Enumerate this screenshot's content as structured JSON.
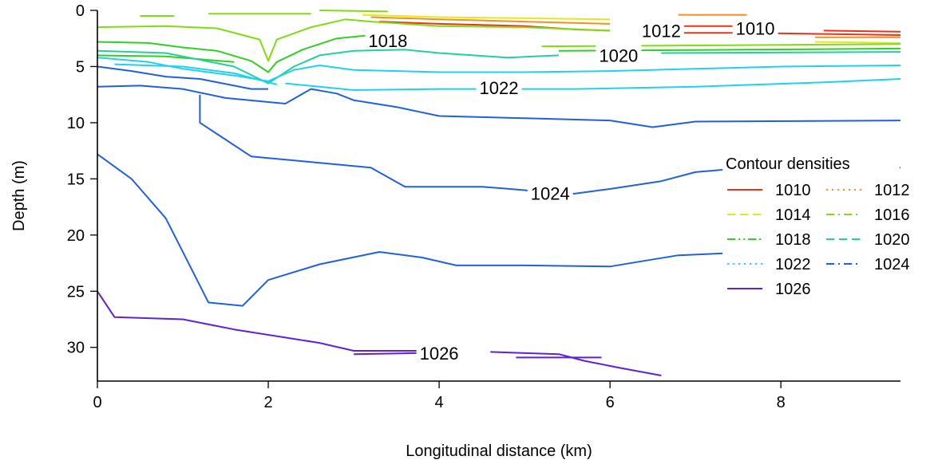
{
  "chart_data": {
    "type": "line",
    "subtype": "contour",
    "xlabel": "Longitudinal distance (km)",
    "ylabel": "Depth (m)",
    "xlim": [
      0,
      9.4
    ],
    "ylim": [
      0,
      33
    ],
    "y_inverted": true,
    "x_ticks": [
      0,
      2,
      4,
      6,
      8
    ],
    "y_ticks": [
      0,
      5,
      10,
      15,
      20,
      25,
      30
    ],
    "legend": {
      "title": "Contour densities",
      "placement": "right"
    },
    "series": [
      {
        "name": "1010",
        "color": "#e8331c",
        "dash": "solid",
        "points": [
          [
            3.3,
            1.0
          ],
          [
            4.0,
            1.2
          ],
          [
            5.0,
            1.4
          ],
          [
            5.6,
            1.7
          ],
          [
            6.0,
            1.8
          ]
        ],
        "segments": [
          [
            [
              6.8,
              2.0
            ],
            [
              7.6,
              2.0
            ],
            [
              9.4,
              2.2
            ]
          ],
          [
            [
              6.8,
              1.4
            ],
            [
              7.5,
              1.4
            ]
          ],
          [
            [
              8.5,
              1.8
            ],
            [
              9.4,
              1.9
            ]
          ]
        ],
        "labels": [
          {
            "x": 7.7,
            "y": 1.6,
            "text": "1010"
          }
        ]
      },
      {
        "name": "1012",
        "color": "#f09020",
        "dash": "dot",
        "points": [
          [
            3.2,
            0.6
          ],
          [
            4.0,
            0.8
          ],
          [
            5.0,
            1.0
          ],
          [
            6.0,
            1.2
          ]
        ],
        "segments": [
          [
            [
              6.8,
              0.4
            ],
            [
              7.6,
              0.4
            ]
          ],
          [
            [
              8.4,
              2.4
            ],
            [
              9.4,
              2.4
            ]
          ]
        ],
        "labels": [
          {
            "x": 6.6,
            "y": 1.8,
            "text": "1012"
          }
        ]
      },
      {
        "name": "1014",
        "color": "#e6e620",
        "dash": "dash",
        "points": [
          [
            3.1,
            0.4
          ],
          [
            4.0,
            0.6
          ],
          [
            5.0,
            0.7
          ],
          [
            6.0,
            0.8
          ]
        ],
        "segments": [
          [
            [
              8.4,
              2.8
            ],
            [
              9.4,
              2.9
            ]
          ]
        ],
        "labels": []
      },
      {
        "name": "1016",
        "color": "#80dc10",
        "dash": "dashdot",
        "points": [
          [
            0.0,
            1.5
          ],
          [
            0.8,
            1.4
          ],
          [
            1.4,
            1.6
          ],
          [
            1.9,
            2.6
          ],
          [
            2.0,
            4.5
          ],
          [
            2.1,
            2.6
          ],
          [
            2.5,
            1.5
          ],
          [
            2.9,
            0.8
          ],
          [
            3.2,
            1.0
          ],
          [
            4.0,
            1.4
          ],
          [
            5.0,
            1.5
          ],
          [
            6.0,
            1.8
          ]
        ],
        "segments": [
          [
            [
              5.2,
              3.2
            ],
            [
              7.4,
              3.1
            ],
            [
              9.4,
              3.0
            ]
          ],
          [
            [
              1.3,
              0.3
            ],
            [
              2.5,
              0.3
            ]
          ],
          [
            [
              0.5,
              0.5
            ],
            [
              0.9,
              0.5
            ]
          ],
          [
            [
              2.6,
              0.0
            ],
            [
              3.4,
              0.1
            ]
          ]
        ],
        "labels": []
      },
      {
        "name": "1018",
        "color": "#30d020",
        "dash": "dashdotdot",
        "points": [
          [
            0.0,
            2.8
          ],
          [
            0.6,
            2.9
          ],
          [
            1.0,
            3.3
          ],
          [
            1.4,
            3.6
          ],
          [
            1.8,
            4.5
          ],
          [
            2.0,
            5.5
          ],
          [
            2.1,
            4.6
          ],
          [
            2.4,
            3.5
          ],
          [
            2.8,
            2.5
          ],
          [
            3.2,
            2.2
          ],
          [
            3.6,
            2.4
          ]
        ],
        "segments": [
          [
            [
              5.4,
              3.6
            ],
            [
              7.6,
              3.5
            ],
            [
              9.4,
              3.4
            ]
          ],
          [
            [
              0.0,
              4.0
            ],
            [
              0.8,
              4.1
            ],
            [
              1.6,
              4.6
            ]
          ]
        ],
        "labels": [
          {
            "x": 3.4,
            "y": 2.7,
            "text": "1018"
          }
        ]
      },
      {
        "name": "1020",
        "color": "#20d0a0",
        "dash": "dash",
        "points": [
          [
            0.0,
            3.6
          ],
          [
            0.8,
            3.8
          ],
          [
            1.6,
            5.0
          ],
          [
            2.0,
            6.5
          ],
          [
            2.3,
            5.0
          ],
          [
            2.6,
            4.0
          ],
          [
            3.0,
            3.6
          ],
          [
            3.6,
            3.5
          ],
          [
            4.0,
            3.8
          ],
          [
            4.8,
            4.2
          ],
          [
            5.4,
            4.0
          ]
        ],
        "segments": [
          [
            [
              6.6,
              3.8
            ],
            [
              9.4,
              3.7
            ]
          ]
        ],
        "labels": [
          {
            "x": 6.1,
            "y": 4.0,
            "text": "1020"
          }
        ]
      },
      {
        "name": "1022",
        "color": "#20d0f0",
        "dash": "dot",
        "points": [
          [
            0.0,
            4.2
          ],
          [
            0.6,
            4.6
          ],
          [
            1.0,
            5.2
          ],
          [
            1.6,
            5.8
          ],
          [
            2.0,
            6.3
          ],
          [
            2.3,
            5.3
          ],
          [
            2.6,
            4.9
          ],
          [
            3.0,
            5.3
          ],
          [
            4.0,
            5.5
          ],
          [
            5.0,
            5.5
          ],
          [
            6.0,
            5.4
          ],
          [
            7.0,
            5.2
          ],
          [
            8.0,
            5.0
          ],
          [
            9.4,
            4.9
          ]
        ],
        "segments": [
          [
            [
              2.2,
              6.5
            ],
            [
              3.0,
              7.1
            ],
            [
              4.0,
              7.0
            ],
            [
              5.6,
              7.0
            ],
            [
              7.0,
              6.8
            ],
            [
              8.5,
              6.4
            ],
            [
              9.4,
              6.1
            ]
          ],
          [
            [
              0.2,
              4.8
            ],
            [
              1.0,
              5.0
            ],
            [
              1.6,
              5.6
            ],
            [
              2.1,
              6.6
            ]
          ]
        ],
        "labels": [
          {
            "x": 4.7,
            "y": 6.9,
            "text": "1022"
          }
        ]
      },
      {
        "name": "1024",
        "color": "#2060e0",
        "dash": "dashdot",
        "points": [
          [
            0.0,
            6.8
          ],
          [
            0.5,
            6.7
          ],
          [
            1.0,
            7.0
          ],
          [
            1.5,
            7.8
          ],
          [
            2.2,
            8.3
          ],
          [
            2.5,
            7.0
          ],
          [
            2.8,
            7.4
          ],
          [
            3.0,
            8.0
          ],
          [
            3.5,
            8.6
          ],
          [
            4.0,
            9.4
          ],
          [
            5.0,
            9.6
          ],
          [
            6.0,
            9.8
          ],
          [
            6.5,
            10.4
          ],
          [
            7.0,
            9.9
          ],
          [
            9.4,
            9.8
          ]
        ],
        "segments": [
          [
            [
              0.0,
              5.0
            ],
            [
              0.4,
              5.4
            ],
            [
              0.8,
              5.9
            ],
            [
              1.2,
              6.1
            ],
            [
              1.6,
              6.7
            ],
            [
              1.8,
              7.0
            ],
            [
              2.0,
              7.0
            ]
          ],
          [
            [
              1.2,
              7.5
            ],
            [
              1.2,
              10.0
            ],
            [
              1.4,
              11.0
            ],
            [
              1.8,
              13.0
            ],
            [
              2.5,
              13.5
            ],
            [
              3.2,
              14.0
            ],
            [
              3.6,
              15.7
            ],
            [
              4.5,
              15.7
            ],
            [
              5.0,
              16.0
            ],
            [
              5.4,
              16.5
            ],
            [
              6.0,
              15.9
            ],
            [
              6.6,
              15.2
            ],
            [
              7.0,
              14.4
            ],
            [
              7.6,
              14.0
            ],
            [
              9.4,
              14.0
            ]
          ],
          [
            [
              0.0,
              12.8
            ],
            [
              0.4,
              15.0
            ],
            [
              0.8,
              18.5
            ],
            [
              1.1,
              23.0
            ],
            [
              1.3,
              26.0
            ],
            [
              1.7,
              26.3
            ],
            [
              2.0,
              24.0
            ],
            [
              2.6,
              22.6
            ],
            [
              3.3,
              21.5
            ],
            [
              3.8,
              22.0
            ],
            [
              4.2,
              22.7
            ],
            [
              5.0,
              22.7
            ],
            [
              6.0,
              22.8
            ],
            [
              6.4,
              22.3
            ],
            [
              6.8,
              21.8
            ],
            [
              7.4,
              21.6
            ],
            [
              8.2,
              21.6
            ]
          ]
        ],
        "labels": [
          {
            "x": 5.3,
            "y": 16.3,
            "text": "1024"
          }
        ]
      },
      {
        "name": "1026",
        "color": "#6020d8",
        "dash": "solid",
        "points": [
          [
            0.0,
            25.0
          ],
          [
            0.2,
            27.3
          ],
          [
            1.0,
            27.5
          ],
          [
            1.6,
            28.4
          ],
          [
            2.6,
            29.6
          ],
          [
            3.0,
            30.3
          ],
          [
            3.8,
            30.3
          ]
        ],
        "segments": [
          [
            [
              3.0,
              30.6
            ],
            [
              3.8,
              30.5
            ]
          ],
          [
            [
              4.6,
              30.4
            ],
            [
              5.4,
              30.6
            ],
            [
              5.5,
              30.8
            ],
            [
              5.7,
              31.2
            ],
            [
              6.1,
              31.8
            ],
            [
              6.6,
              32.5
            ]
          ],
          [
            [
              4.9,
              30.9
            ],
            [
              5.9,
              30.9
            ]
          ]
        ],
        "labels": [
          {
            "x": 4.0,
            "y": 30.5,
            "text": "1026"
          }
        ]
      }
    ]
  }
}
